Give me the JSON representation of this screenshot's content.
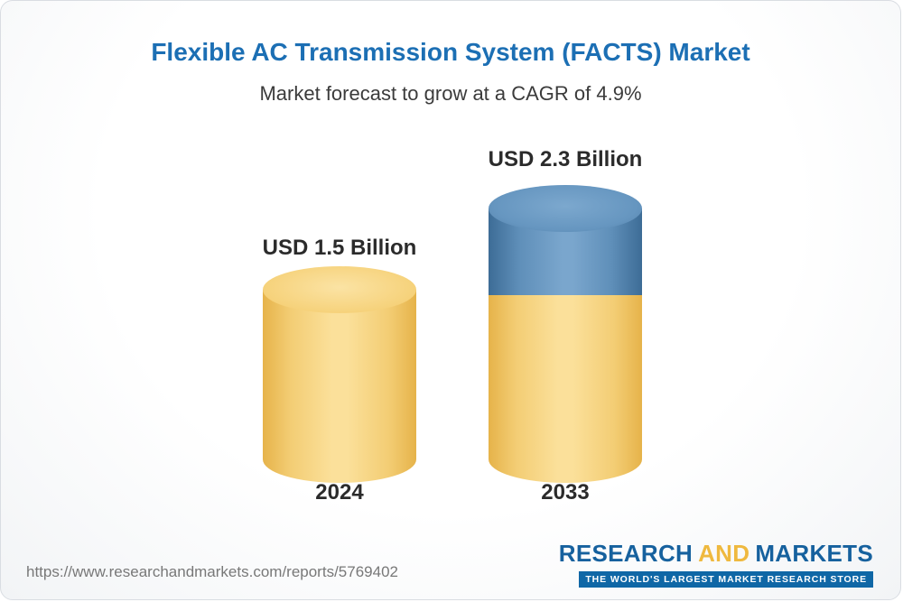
{
  "header": {
    "title": "Flexible AC Transmission System (FACTS) Market",
    "subtitle": "Market forecast to grow at a CAGR of 4.9%"
  },
  "chart_data": {
    "type": "bar",
    "subtype": "3d-cylinder",
    "categories": [
      "2024",
      "2033"
    ],
    "values": [
      1.5,
      2.3
    ],
    "unit": "USD Billion",
    "value_labels": [
      "USD 1.5 Billion",
      "USD 2.3 Billion"
    ],
    "title": "Flexible AC Transmission System (FACTS) Market",
    "subtitle": "Market forecast to grow at a CAGR of 4.9%",
    "ylim": [
      0,
      2.5
    ],
    "grid": false,
    "legend": "none",
    "colors": {
      "base_segment": "#f6d27b",
      "growth_segment": "#6696c0"
    }
  },
  "bars": [
    {
      "category": "2024",
      "value_label": "USD 1.5 Billion",
      "year_label": "2024"
    },
    {
      "category": "2033",
      "value_label": "USD 2.3 Billion",
      "year_label": "2033"
    }
  ],
  "footer": {
    "url": "https://www.researchandmarkets.com/reports/5769402",
    "logo": {
      "word1": "RESEARCH",
      "word2": "AND",
      "word3": "MARKETS",
      "tagline": "THE WORLD'S LARGEST MARKET RESEARCH STORE"
    }
  },
  "colors": {
    "title": "#1c6fb4",
    "subtitle": "#3b3b3b",
    "yellow": "#f6d27b",
    "blue": "#6696c0",
    "logo_blue": "#16619e",
    "logo_gold": "#efb93f"
  }
}
